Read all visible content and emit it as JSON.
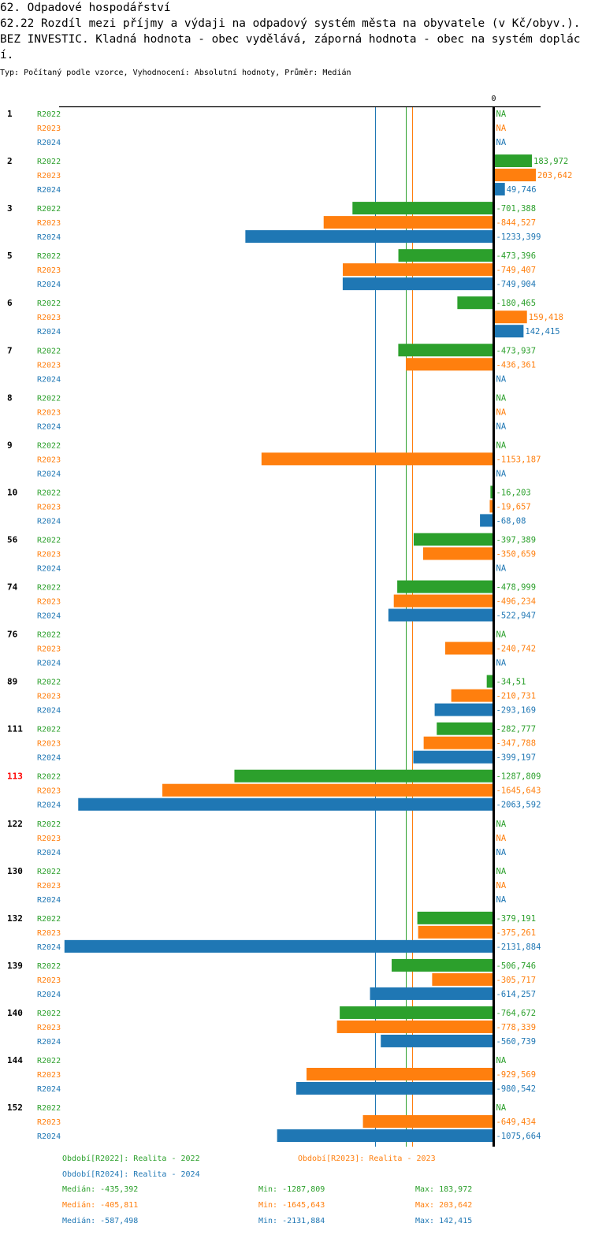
{
  "header": {
    "title_line1": "62. Odpadové hospodářství",
    "title_line2": "62.22 Rozdíl mezi příjmy a výdaji na odpadový systém města na obyvatele (v Kč/obyv.). BEZ INVESTIC. Kladná hodnota - obec vydělává, záporná hodnota - obec na systém doplácí.",
    "subtitle": "Typ: Počítaný podle vzorce, Vyhodnocení: Absolutní hodnoty, Průměr: Medián"
  },
  "colors": {
    "R2022": "#2ca02c",
    "R2023": "#ff7f0e",
    "R2024": "#1f77b4",
    "highlight": "#ff0000",
    "axis": "#000000"
  },
  "chart_data": {
    "type": "bar",
    "orientation": "horizontal",
    "title": "62.22 Rozdíl mezi příjmy a výdaji na odpadový systém města na obyvatele (v Kč/obyv.). BEZ INVESTIC.",
    "xlabel": "",
    "ylabel": "",
    "axis_zero_label": "0",
    "xlim": [
      -2131.884,
      230
    ],
    "grid": false,
    "series_names": [
      "R2022",
      "R2023",
      "R2024"
    ],
    "highlighted_group": "113",
    "groups": [
      {
        "label": "1",
        "values": [
          null,
          null,
          null
        ]
      },
      {
        "label": "2",
        "values": [
          183.972,
          203.642,
          49.746
        ]
      },
      {
        "label": "3",
        "values": [
          -701.388,
          -844.527,
          -1233.399
        ]
      },
      {
        "label": "5",
        "values": [
          -473.396,
          -749.407,
          -749.904
        ]
      },
      {
        "label": "6",
        "values": [
          -180.465,
          159.418,
          142.415
        ]
      },
      {
        "label": "7",
        "values": [
          -473.937,
          -436.361,
          null
        ]
      },
      {
        "label": "8",
        "values": [
          null,
          null,
          null
        ]
      },
      {
        "label": "9",
        "values": [
          null,
          -1153.187,
          null
        ]
      },
      {
        "label": "10",
        "values": [
          -16.203,
          -19.657,
          -68.08
        ]
      },
      {
        "label": "56",
        "values": [
          -397.389,
          -350.659,
          null
        ]
      },
      {
        "label": "74",
        "values": [
          -478.999,
          -496.234,
          -522.947
        ]
      },
      {
        "label": "76",
        "values": [
          null,
          -240.742,
          null
        ]
      },
      {
        "label": "89",
        "values": [
          -34.51,
          -210.731,
          -293.169
        ]
      },
      {
        "label": "111",
        "values": [
          -282.777,
          -347.788,
          -399.197
        ]
      },
      {
        "label": "113",
        "values": [
          -1287.809,
          -1645.643,
          -2063.592
        ]
      },
      {
        "label": "122",
        "values": [
          null,
          null,
          null
        ]
      },
      {
        "label": "130",
        "values": [
          null,
          null,
          null
        ]
      },
      {
        "label": "132",
        "values": [
          -379.191,
          -375.261,
          -2131.884
        ]
      },
      {
        "label": "139",
        "values": [
          -506.746,
          -305.717,
          -614.257
        ]
      },
      {
        "label": "140",
        "values": [
          -764.672,
          -778.339,
          -560.739
        ]
      },
      {
        "label": "144",
        "values": [
          null,
          -929.569,
          -980.542
        ]
      },
      {
        "label": "152",
        "values": [
          null,
          -649.434,
          -1075.664
        ]
      }
    ],
    "value_labels": [
      [
        "NA",
        "NA",
        "NA"
      ],
      [
        "183,972",
        "203,642",
        "49,746"
      ],
      [
        "-701,388",
        "-844,527",
        "-1233,399"
      ],
      [
        "-473,396",
        "-749,407",
        "-749,904"
      ],
      [
        "-180,465",
        "159,418",
        "142,415"
      ],
      [
        "-473,937",
        "-436,361",
        "NA"
      ],
      [
        "NA",
        "NA",
        "NA"
      ],
      [
        "NA",
        "-1153,187",
        "NA"
      ],
      [
        "-16,203",
        "-19,657",
        "-68,08"
      ],
      [
        "-397,389",
        "-350,659",
        "NA"
      ],
      [
        "-478,999",
        "-496,234",
        "-522,947"
      ],
      [
        "NA",
        "-240,742",
        "NA"
      ],
      [
        "-34,51",
        "-210,731",
        "-293,169"
      ],
      [
        "-282,777",
        "-347,788",
        "-399,197"
      ],
      [
        "-1287,809",
        "-1645,643",
        "-2063,592"
      ],
      [
        "NA",
        "NA",
        "NA"
      ],
      [
        "NA",
        "NA",
        "NA"
      ],
      [
        "-379,191",
        "-375,261",
        "-2131,884"
      ],
      [
        "-506,746",
        "-305,717",
        "-614,257"
      ],
      [
        "-764,672",
        "-778,339",
        "-560,739"
      ],
      [
        "NA",
        "-929,569",
        "-980,542"
      ],
      [
        "NA",
        "-649,434",
        "-1075,664"
      ]
    ],
    "medians": {
      "R2022": -435.392,
      "R2023": -405.811,
      "R2024": -587.498
    }
  },
  "legend": {
    "items": [
      {
        "series": "R2022",
        "text": "Období[R2022]: Realita - 2022"
      },
      {
        "series": "R2023",
        "text": "Období[R2023]: Realita - 2023"
      },
      {
        "series": "R2024",
        "text": "Období[R2024]: Realita - 2024"
      }
    ],
    "stats": [
      {
        "series": "R2022",
        "median": "Medián: -435,392",
        "min": "Min: -1287,809",
        "max": "Max: 183,972"
      },
      {
        "series": "R2023",
        "median": "Medián: -405,811",
        "min": "Min: -1645,643",
        "max": "Max: 203,642"
      },
      {
        "series": "R2024",
        "median": "Medián: -587,498",
        "min": "Min: -2131,884",
        "max": "Max: 142,415"
      }
    ]
  }
}
